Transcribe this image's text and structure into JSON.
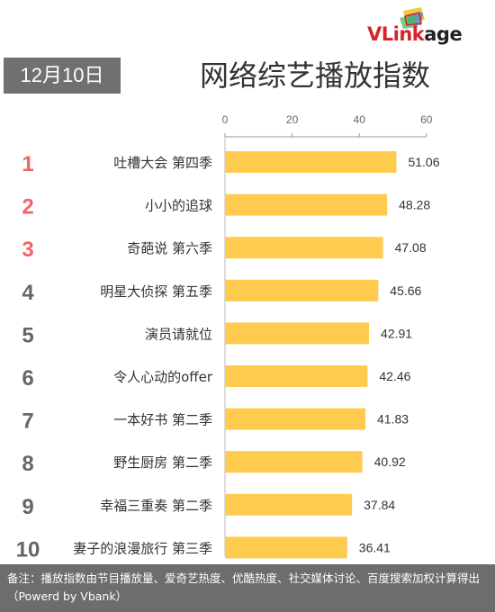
{
  "brand": {
    "logo_part1": "VLink",
    "logo_part2": "age",
    "logo_name": "vlinkage-logo"
  },
  "date": "12月10日",
  "title": "网络综艺播放指数",
  "footer_note": "备注：播放指数由节目播放量、爱奇艺热度、优酷热度、社交媒体讨论、百度搜索加权计算得出（Powerd by Vbank）",
  "colors": {
    "bar": "#ffcb4f",
    "rank_top": "#f06566",
    "rank_other": "#666666",
    "footer_bg": "#6d6d6d"
  },
  "chart_data": {
    "type": "bar",
    "orientation": "horizontal",
    "title": "网络综艺播放指数",
    "xlim": [
      0,
      60
    ],
    "xticks": [
      0,
      20,
      40,
      60
    ],
    "xaxis_position": "top",
    "grid": false,
    "ranks": [
      "1",
      "2",
      "3",
      "4",
      "5",
      "6",
      "7",
      "8",
      "9",
      "10"
    ],
    "categories": [
      "吐槽大会 第四季",
      "小小的追球",
      "奇葩说 第六季",
      "明星大侦探 第五季",
      "演员请就位",
      "令人心动的offer",
      "一本好书 第二季",
      "野生厨房 第二季",
      "幸福三重奏 第二季",
      "妻子的浪漫旅行 第三季"
    ],
    "values": [
      51.06,
      48.28,
      47.08,
      45.66,
      42.91,
      42.46,
      41.83,
      40.92,
      37.84,
      36.41
    ],
    "value_labels": [
      "51.06",
      "48.28",
      "47.08",
      "45.66",
      "42.91",
      "42.46",
      "41.83",
      "40.92",
      "37.84",
      "36.41"
    ]
  }
}
